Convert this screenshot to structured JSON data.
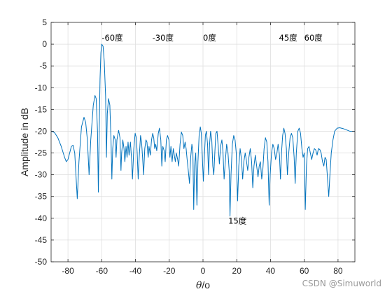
{
  "chart_data": {
    "type": "line",
    "xlabel_italic": "θ",
    "xlabel_rest": "/o",
    "ylabel": "Amplitude in dB",
    "xlim": [
      -90,
      90
    ],
    "ylim": [
      -50,
      5
    ],
    "xticks": [
      -80,
      -60,
      -40,
      -20,
      0,
      20,
      40,
      60,
      80
    ],
    "yticks": [
      5,
      0,
      -5,
      -10,
      -15,
      -20,
      -25,
      -30,
      -35,
      -40,
      -45,
      -50
    ],
    "grid": true,
    "line_color": "#0072BD",
    "annotations": [
      {
        "text": "-60度",
        "x": -60,
        "y": 0.8
      },
      {
        "text": "-30度",
        "x": -30,
        "y": 0.8
      },
      {
        "text": "0度",
        "x": 0,
        "y": 0.8
      },
      {
        "text": "45度",
        "x": 45,
        "y": 0.8
      },
      {
        "text": "60度",
        "x": 60,
        "y": 0.8
      },
      {
        "text": "15度",
        "x": 15,
        "y": -41.2
      }
    ],
    "series": [
      {
        "points": [
          [
            -90,
            -20
          ],
          [
            -88,
            -20.3
          ],
          [
            -86,
            -21.5
          ],
          [
            -84,
            -23.5
          ],
          [
            -82,
            -26
          ],
          [
            -81,
            -27
          ],
          [
            -80,
            -26.5
          ],
          [
            -78,
            -23.5
          ],
          [
            -77,
            -23.2
          ],
          [
            -76,
            -25
          ],
          [
            -74.5,
            -35.5
          ],
          [
            -73.5,
            -27
          ],
          [
            -72,
            -19
          ],
          [
            -70.5,
            -16.8
          ],
          [
            -69.5,
            -18
          ],
          [
            -68.5,
            -22
          ],
          [
            -67.5,
            -30
          ],
          [
            -66.5,
            -22
          ],
          [
            -65,
            -14
          ],
          [
            -64,
            -11.8
          ],
          [
            -63.3,
            -12.5
          ],
          [
            -62.5,
            -20
          ],
          [
            -62,
            -34
          ],
          [
            -61.5,
            -20
          ],
          [
            -61,
            -8
          ],
          [
            -60.5,
            -2
          ],
          [
            -60,
            0
          ],
          [
            -59.2,
            -0.5
          ],
          [
            -58.5,
            -4
          ],
          [
            -57.7,
            -12
          ],
          [
            -57.2,
            -26
          ],
          [
            -56.7,
            -16
          ],
          [
            -56,
            -12.5
          ],
          [
            -55.2,
            -14
          ],
          [
            -54.5,
            -22
          ],
          [
            -54,
            -31
          ],
          [
            -53.5,
            -24
          ],
          [
            -52.8,
            -21
          ],
          [
            -52,
            -22
          ],
          [
            -51.5,
            -26
          ],
          [
            -51,
            -22
          ],
          [
            -50,
            -19.8
          ],
          [
            -49.2,
            -21.5
          ],
          [
            -48.6,
            -29
          ],
          [
            -48.2,
            -25
          ],
          [
            -47.5,
            -22
          ],
          [
            -46.8,
            -24
          ],
          [
            -46.3,
            -27
          ],
          [
            -45.6,
            -23.5
          ],
          [
            -45,
            -26
          ],
          [
            -44.4,
            -22.5
          ],
          [
            -43.8,
            -25.5
          ],
          [
            -43,
            -22.5
          ],
          [
            -42.3,
            -26.5
          ],
          [
            -41.8,
            -31
          ],
          [
            -41,
            -24
          ],
          [
            -40.2,
            -20.5
          ],
          [
            -39.5,
            -21.5
          ],
          [
            -39,
            -25
          ],
          [
            -38.4,
            -31
          ],
          [
            -37.8,
            -26
          ],
          [
            -37,
            -21
          ],
          [
            -36.4,
            -22.5
          ],
          [
            -35.8,
            -26
          ],
          [
            -35.2,
            -30
          ],
          [
            -34.5,
            -24
          ],
          [
            -33.8,
            -22
          ],
          [
            -33.2,
            -22.5
          ],
          [
            -32.5,
            -26
          ],
          [
            -32,
            -23.5
          ],
          [
            -31.2,
            -25.5
          ],
          [
            -30.5,
            -22
          ],
          [
            -29.8,
            -20.5
          ],
          [
            -29.2,
            -21.5
          ],
          [
            -28.6,
            -24
          ],
          [
            -28,
            -23
          ],
          [
            -27.4,
            -24.5
          ],
          [
            -26.5,
            -20.5
          ],
          [
            -25.8,
            -19.3
          ],
          [
            -25,
            -22
          ],
          [
            -24.4,
            -28
          ],
          [
            -23.8,
            -23.5
          ],
          [
            -23,
            -24.5
          ],
          [
            -22.4,
            -27
          ],
          [
            -21.7,
            -22
          ],
          [
            -21,
            -21
          ],
          [
            -20.2,
            -22
          ],
          [
            -19.6,
            -26
          ],
          [
            -19,
            -23.5
          ],
          [
            -18.3,
            -27
          ],
          [
            -17.6,
            -24
          ],
          [
            -17,
            -25.5
          ],
          [
            -16.4,
            -27
          ],
          [
            -15.8,
            -25
          ],
          [
            -15,
            -26.5
          ],
          [
            -14.4,
            -28
          ],
          [
            -13.6,
            -23
          ],
          [
            -12.8,
            -20.2
          ],
          [
            -12,
            -21
          ],
          [
            -11.3,
            -24
          ],
          [
            -10.6,
            -22.5
          ],
          [
            -10,
            -24
          ],
          [
            -9.4,
            -26.5
          ],
          [
            -8.6,
            -29.5
          ],
          [
            -8,
            -32
          ],
          [
            -7.3,
            -26
          ],
          [
            -6.6,
            -23
          ],
          [
            -6,
            -24.5
          ],
          [
            -5.5,
            -38
          ],
          [
            -5,
            -28
          ],
          [
            -4.3,
            -25
          ],
          [
            -3.6,
            -37
          ],
          [
            -3,
            -27
          ],
          [
            -2.3,
            -21
          ],
          [
            -1.6,
            -19
          ],
          [
            -1,
            -20.5
          ],
          [
            -0.4,
            -26
          ],
          [
            0.2,
            -31.5
          ],
          [
            0.8,
            -26
          ],
          [
            1.4,
            -21
          ],
          [
            2,
            -20
          ],
          [
            2.7,
            -23
          ],
          [
            3.3,
            -30
          ],
          [
            3.9,
            -23
          ],
          [
            4.5,
            -20
          ],
          [
            5.2,
            -22
          ],
          [
            5.8,
            -28
          ],
          [
            6.4,
            -30
          ],
          [
            7,
            -25
          ],
          [
            7.6,
            -20.5
          ],
          [
            8.3,
            -20
          ],
          [
            9,
            -23.5
          ],
          [
            9.7,
            -27.5
          ],
          [
            10.4,
            -23.5
          ],
          [
            11.2,
            -22
          ],
          [
            11.8,
            -24.5
          ],
          [
            12.5,
            -31
          ],
          [
            13.2,
            -27
          ],
          [
            14,
            -23
          ],
          [
            14.8,
            -25
          ],
          [
            15.5,
            -29
          ],
          [
            16,
            -39.5
          ],
          [
            16.6,
            -30
          ],
          [
            17.4,
            -23
          ],
          [
            18.2,
            -21
          ],
          [
            19,
            -22
          ],
          [
            19.7,
            -25
          ],
          [
            20.5,
            -36
          ],
          [
            21.2,
            -28
          ],
          [
            22,
            -24
          ],
          [
            22.8,
            -26.5
          ],
          [
            23.5,
            -31
          ],
          [
            24.2,
            -27
          ],
          [
            25,
            -25
          ],
          [
            25.8,
            -27
          ],
          [
            26.5,
            -29
          ],
          [
            27.2,
            -26
          ],
          [
            28,
            -24
          ],
          [
            28.8,
            -27
          ],
          [
            29.5,
            -33
          ],
          [
            30.2,
            -28
          ],
          [
            31,
            -25.5
          ],
          [
            31.8,
            -28
          ],
          [
            32.6,
            -30.5
          ],
          [
            33.3,
            -28
          ],
          [
            34,
            -27
          ],
          [
            34.8,
            -31
          ],
          [
            35.5,
            -28.5
          ],
          [
            36.2,
            -24
          ],
          [
            37,
            -21.5
          ],
          [
            37.8,
            -22.5
          ],
          [
            38.5,
            -27
          ],
          [
            39.2,
            -37
          ],
          [
            39.8,
            -30
          ],
          [
            40.6,
            -25
          ],
          [
            41.4,
            -23
          ],
          [
            42.2,
            -24
          ],
          [
            43,
            -26.5
          ],
          [
            43.8,
            -25
          ],
          [
            44.5,
            -23
          ],
          [
            45.3,
            -25.5
          ],
          [
            45.9,
            -31
          ],
          [
            46.5,
            -25
          ],
          [
            47.2,
            -21
          ],
          [
            47.9,
            -19.3
          ],
          [
            48.6,
            -20.5
          ],
          [
            49.4,
            -24
          ],
          [
            50,
            -30
          ],
          [
            50.8,
            -25
          ],
          [
            51.6,
            -21.5
          ],
          [
            52.4,
            -20.5
          ],
          [
            53.2,
            -21.5
          ],
          [
            54,
            -26
          ],
          [
            54.6,
            -32
          ],
          [
            55.3,
            -25
          ],
          [
            56.2,
            -20
          ],
          [
            57,
            -19.3
          ],
          [
            57.8,
            -20.5
          ],
          [
            58.6,
            -24
          ],
          [
            59.3,
            -26
          ],
          [
            60,
            -25
          ],
          [
            60.6,
            -38
          ],
          [
            61.3,
            -28
          ],
          [
            62,
            -24
          ],
          [
            62.8,
            -23.5
          ],
          [
            63.6,
            -25
          ],
          [
            64.4,
            -26.5
          ],
          [
            65.2,
            -25
          ],
          [
            66,
            -24
          ],
          [
            66.8,
            -24.3
          ],
          [
            67.6,
            -25.5
          ],
          [
            68.4,
            -24
          ],
          [
            69.2,
            -24.2
          ],
          [
            70,
            -25
          ],
          [
            70.8,
            -27
          ],
          [
            71.6,
            -28
          ],
          [
            72.3,
            -26
          ],
          [
            73,
            -26.5
          ],
          [
            73.8,
            -31
          ],
          [
            74.5,
            -35
          ],
          [
            75.2,
            -30
          ],
          [
            76,
            -25
          ],
          [
            77,
            -22
          ],
          [
            78,
            -20
          ],
          [
            79.5,
            -19.3
          ],
          [
            81,
            -19.2
          ],
          [
            83,
            -19.4
          ],
          [
            85,
            -19.7
          ],
          [
            87,
            -20
          ],
          [
            89,
            -20
          ],
          [
            90,
            -20
          ]
        ]
      }
    ]
  },
  "watermark": "CSDN @Simuworld"
}
